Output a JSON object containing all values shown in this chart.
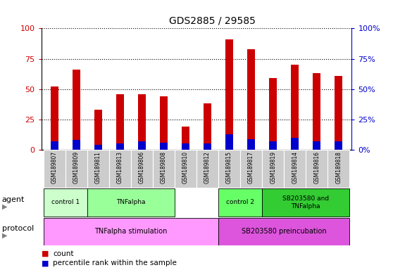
{
  "title": "GDS2885 / 29585",
  "samples": [
    "GSM189807",
    "GSM189809",
    "GSM189811",
    "GSM189813",
    "GSM189806",
    "GSM189808",
    "GSM189810",
    "GSM189812",
    "GSM189815",
    "GSM189817",
    "GSM189819",
    "GSM189814",
    "GSM189816",
    "GSM189818"
  ],
  "count_values": [
    52,
    66,
    33,
    46,
    46,
    44,
    19,
    38,
    91,
    83,
    59,
    70,
    63,
    61
  ],
  "percentile_values": [
    7,
    8,
    4,
    5,
    7,
    6,
    5,
    5,
    13,
    9,
    7,
    10,
    7,
    7
  ],
  "bar_color_red": "#cc0000",
  "bar_color_blue": "#0000cc",
  "ylim": [
    0,
    100
  ],
  "yticks": [
    0,
    25,
    50,
    75,
    100
  ],
  "agent_spans": [
    {
      "label": "control 1",
      "start": 0,
      "end": 2,
      "color": "#ccffcc"
    },
    {
      "label": "TNFalpha",
      "start": 2,
      "end": 6,
      "color": "#99ff99"
    },
    {
      "label": "control 2",
      "start": 8,
      "end": 10,
      "color": "#66ff66"
    },
    {
      "label": "SB203580 and\nTNFalpha",
      "start": 10,
      "end": 14,
      "color": "#33cc33"
    }
  ],
  "protocol_spans": [
    {
      "label": "TNFalpha stimulation",
      "start": 0,
      "end": 8,
      "color": "#ff99ff"
    },
    {
      "label": "SB203580 preincubation",
      "start": 8,
      "end": 14,
      "color": "#dd55dd"
    }
  ],
  "bar_color_left_axis": "#cc0000",
  "bar_color_right_axis": "#0000cc",
  "background_color": "#ffffff",
  "sample_bg": "#cccccc",
  "bar_width": 0.35
}
